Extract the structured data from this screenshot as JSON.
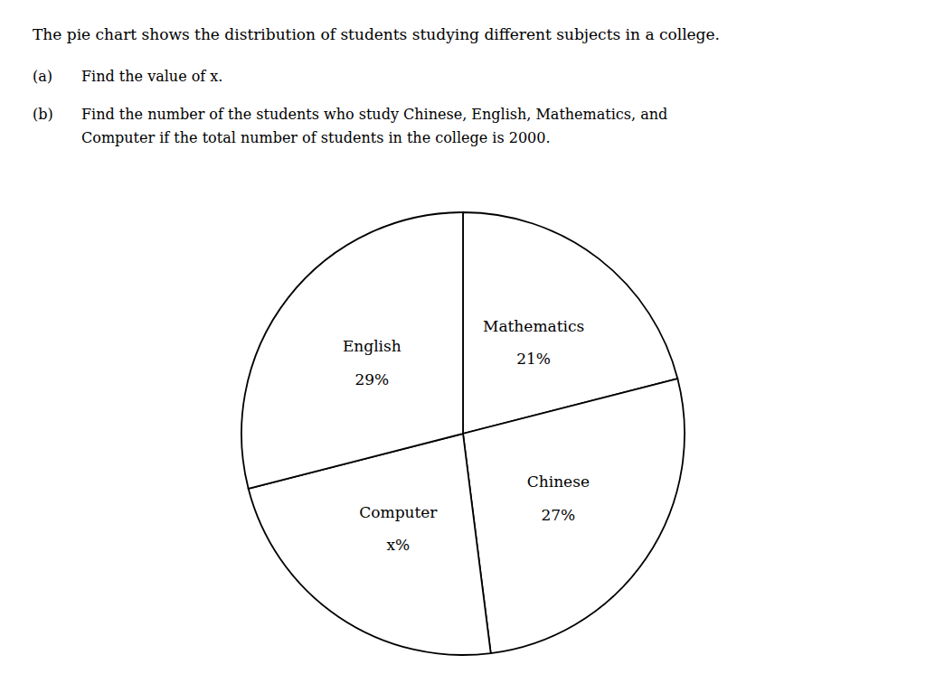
{
  "chart_data": {
    "type": "pie",
    "title": "The pie chart shows the distribution of students studying different subjects in a college.",
    "annotations": [
      {
        "prefix": "(a)",
        "lines": [
          "Find the value of x."
        ]
      },
      {
        "prefix": "(b)",
        "lines": [
          "Find the number of the students who study Chinese, English, Mathematics, and",
          "Computer if the total number of students in the college is 2000."
        ]
      }
    ],
    "categories": [
      "Mathematics",
      "Chinese",
      "Computer",
      "English"
    ],
    "values": [
      21,
      27,
      23,
      29
    ],
    "value_labels": [
      "21%",
      "27%",
      "x%",
      "29%"
    ],
    "colors": [
      "#ffffff",
      "#ffffff",
      "#ffffff",
      "#ffffff"
    ],
    "data_labels": true
  }
}
